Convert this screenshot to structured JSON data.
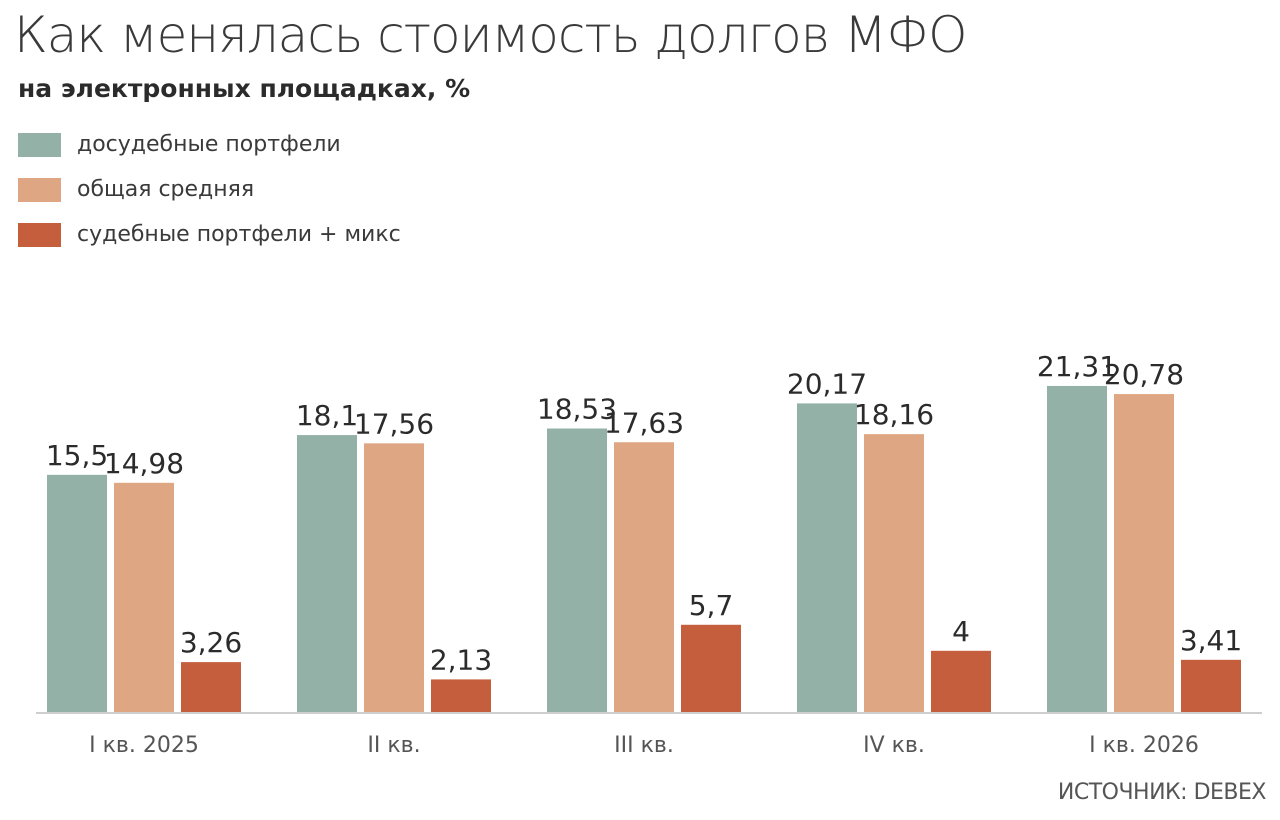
{
  "header": {
    "title": "Как менялась стоимость долгов МФО",
    "subtitle": "на электронных площадках, %"
  },
  "source": "ИСТОЧНИК: DEBEX",
  "chart_data": {
    "type": "bar",
    "title": "Как менялась стоимость долгов МФО",
    "subtitle": "на электронных площадках, %",
    "categories": [
      "I кв. 2025",
      "II кв.",
      "III кв.",
      "IV кв.",
      "I кв. 2026"
    ],
    "series": [
      {
        "name": "досудебные портфели",
        "color": "#93b1a7",
        "values": [
          15.5,
          18.1,
          18.53,
          20.17,
          21.31
        ],
        "labels": [
          "15,5",
          "18,1",
          "18,53",
          "20,17",
          "21,31"
        ]
      },
      {
        "name": "общая средняя",
        "color": "#dea682",
        "values": [
          14.98,
          17.56,
          17.63,
          18.16,
          20.78
        ],
        "labels": [
          "14,98",
          "17,56",
          "17,63",
          "18,16",
          "20,78"
        ]
      },
      {
        "name": "судебные портфели + микс",
        "color": "#c45e3c",
        "values": [
          3.26,
          2.13,
          5.7,
          4,
          3.41
        ],
        "labels": [
          "3,26",
          "2,13",
          "5,7",
          "4",
          "3,41"
        ]
      }
    ],
    "grid": false,
    "legend_position": "top-left",
    "axis_color": "#bdbdbd"
  }
}
